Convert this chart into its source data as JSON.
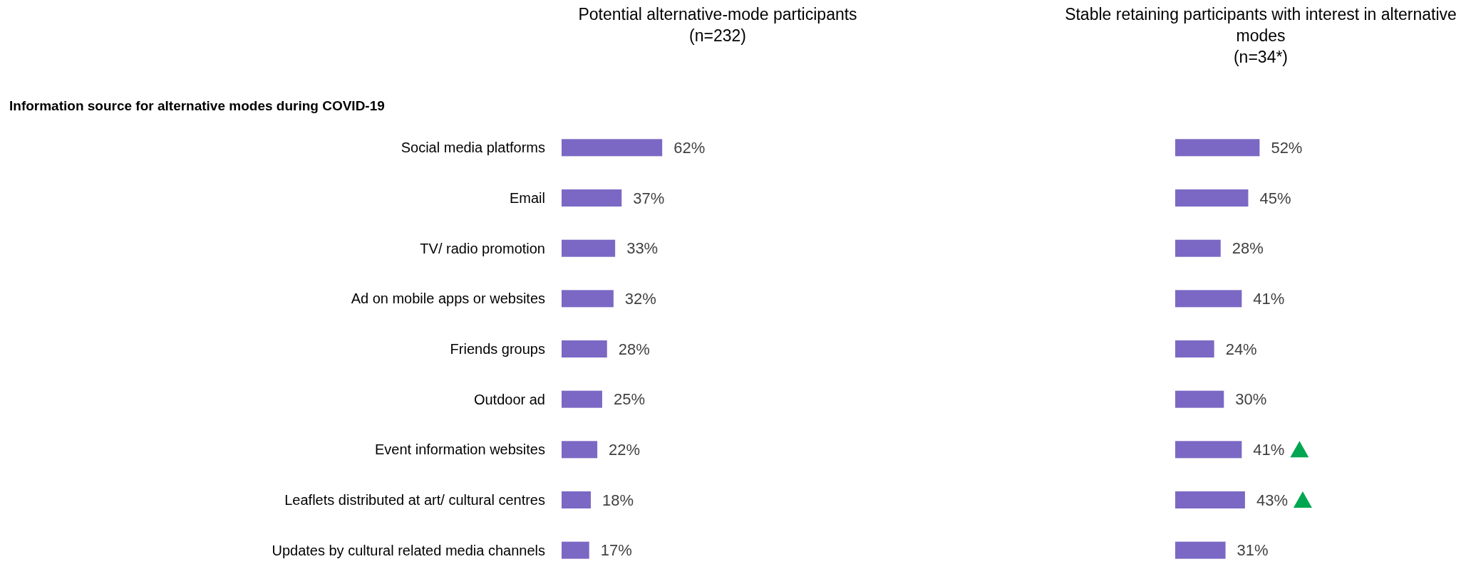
{
  "chart_data": [
    {
      "type": "bar",
      "orientation": "horizontal",
      "title": "Potential alternative-mode participants\n(n=232)",
      "annotations": [
        "Information source for alternative modes during COVID-19"
      ],
      "categories": [
        "Social media platforms",
        "Email",
        "TV/ radio promotion",
        "Ad on mobile apps or websites",
        "Friends groups",
        "Outdoor ad",
        "Event information websites",
        "Leaflets distributed at art/ cultural centres",
        "Updates by cultural related media channels"
      ],
      "values": [
        62,
        37,
        33,
        32,
        28,
        25,
        22,
        18,
        17
      ],
      "value_labels": [
        "62%",
        "37%",
        "33%",
        "32%",
        "28%",
        "25%",
        "22%",
        "18%",
        "17%"
      ],
      "color": "#7b68c4"
    },
    {
      "type": "bar",
      "orientation": "horizontal",
      "title": "Stable retaining participants with interest in alternative modes\n(n=34*)",
      "categories": [
        null,
        null,
        null,
        null,
        null,
        null,
        null,
        null,
        null
      ],
      "values": [
        52,
        45,
        28,
        41,
        24,
        30,
        41,
        43,
        31
      ],
      "value_labels": [
        "52%",
        "45%",
        "28%",
        "41%",
        "24%",
        "30%",
        "41%",
        "43%",
        "31%"
      ],
      "color": "#7b68c4"
    }
  ]
}
